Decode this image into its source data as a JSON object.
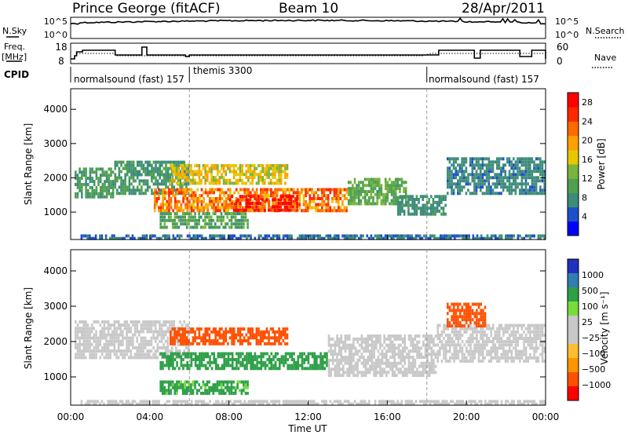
{
  "header": {
    "station": "Prince George (fitACF)",
    "beam": "Beam 10",
    "date": "28/Apr/2011"
  },
  "top_panels": {
    "nsky_label": "N.Sky",
    "nsky_ticks": [
      "10^5",
      "10^0"
    ],
    "nsearch_label": "N.Search",
    "nsearch_ticks": [
      "10^5",
      "10^0"
    ],
    "freq_label": "Freq.",
    "freq_unit": "[MHz]",
    "freq_ticks": [
      "18",
      "8"
    ],
    "nave_label": "Nave",
    "nave_ticks": [
      "60",
      "0"
    ],
    "cpid_label": "CPID",
    "cpid_segments": [
      {
        "name": "normalsound (fast) 157",
        "start": 0.0,
        "end": 6.0
      },
      {
        "name": "themis 3300",
        "start": 6.0,
        "end": 18.0
      },
      {
        "name": "normalsound (fast) 157",
        "start": 18.0,
        "end": 24.0
      }
    ]
  },
  "time_axis": {
    "label": "Time UT",
    "ticks": [
      "00:00",
      "04:00",
      "08:00",
      "12:00",
      "16:00",
      "20:00",
      "00:00"
    ]
  },
  "colors": {
    "power_scale": [
      "#0000ff",
      "#1c50c8",
      "#3c8c78",
      "#4ea050",
      "#78b43c",
      "#e6c800",
      "#ffa000",
      "#ff6a00",
      "#ff2800",
      "#ff0000"
    ],
    "velocity_scale": [
      "#ff0000",
      "#ff5000",
      "#ff9600",
      "#ffbe32",
      "#c8c8c8",
      "#c8c8c8",
      "#78dc3c",
      "#2ea048",
      "#2f7fb0",
      "#2030c0"
    ],
    "ground_scatter": "#c8c8c8"
  },
  "chart_data": [
    {
      "type": "heatmap",
      "panel": "power",
      "ylabel": "Slant Range [km]",
      "xlabel": "",
      "yticks": [
        "1000",
        "2000",
        "3000",
        "4000"
      ],
      "ylim": [
        200,
        4600
      ],
      "xlim": [
        0,
        24
      ],
      "colorbar_label": "Power [dB]",
      "colorbar_ticks": [
        "4",
        "8",
        "12",
        "16",
        "20",
        "24",
        "28"
      ],
      "colorbar_range": [
        0,
        30
      ],
      "regions": [
        {
          "x": [
            0.2,
            2.2
          ],
          "y": [
            1400,
            2300
          ],
          "value": 9
        },
        {
          "x": [
            2.2,
            6.0
          ],
          "y": [
            1500,
            2500
          ],
          "value": 8
        },
        {
          "x": [
            4.2,
            14.0
          ],
          "y": [
            1000,
            1700
          ],
          "value": 22
        },
        {
          "x": [
            8.0,
            11.5
          ],
          "y": [
            1000,
            1500
          ],
          "value": 28
        },
        {
          "x": [
            4.5,
            9.0
          ],
          "y": [
            500,
            1000
          ],
          "value": 10
        },
        {
          "x": [
            5.0,
            11.0
          ],
          "y": [
            1800,
            2400
          ],
          "value": 17
        },
        {
          "x": [
            14.0,
            17.0
          ],
          "y": [
            1200,
            2000
          ],
          "value": 11
        },
        {
          "x": [
            16.5,
            19.0
          ],
          "y": [
            900,
            1500
          ],
          "value": 7
        },
        {
          "x": [
            19.0,
            24.0
          ],
          "y": [
            1500,
            2600
          ],
          "value": 6
        },
        {
          "x": [
            0.5,
            24.0
          ],
          "y": [
            200,
            350
          ],
          "value": 5
        }
      ]
    },
    {
      "type": "heatmap",
      "panel": "velocity",
      "ylabel": "Slant Range [km]",
      "xlabel": "Time UT",
      "yticks": [
        "1000",
        "2000",
        "3000",
        "4000"
      ],
      "ylim": [
        200,
        4600
      ],
      "xlim": [
        0,
        24
      ],
      "colorbar_label": "Velocity [m s⁻¹]",
      "colorbar_ticks": [
        "1000",
        "500",
        "100",
        "25",
        "−25",
        "−100",
        "−500",
        "−1000"
      ],
      "regions": [
        {
          "x": [
            0.2,
            6.0
          ],
          "y": [
            1500,
            2600
          ],
          "value": 0
        },
        {
          "x": [
            4.5,
            13.0
          ],
          "y": [
            1200,
            1700
          ],
          "value": 150
        },
        {
          "x": [
            5.0,
            11.0
          ],
          "y": [
            1900,
            2400
          ],
          "value": -200
        },
        {
          "x": [
            4.5,
            9.0
          ],
          "y": [
            500,
            900
          ],
          "value": 120
        },
        {
          "x": [
            13.0,
            18.5
          ],
          "y": [
            1000,
            2200
          ],
          "value": 0
        },
        {
          "x": [
            18.5,
            24.0
          ],
          "y": [
            1400,
            2500
          ],
          "value": 0
        },
        {
          "x": [
            19.0,
            21.0
          ],
          "y": [
            2400,
            3100
          ],
          "value": -250
        },
        {
          "x": [
            0.5,
            24.0
          ],
          "y": [
            200,
            350
          ],
          "value": 0
        }
      ]
    }
  ]
}
